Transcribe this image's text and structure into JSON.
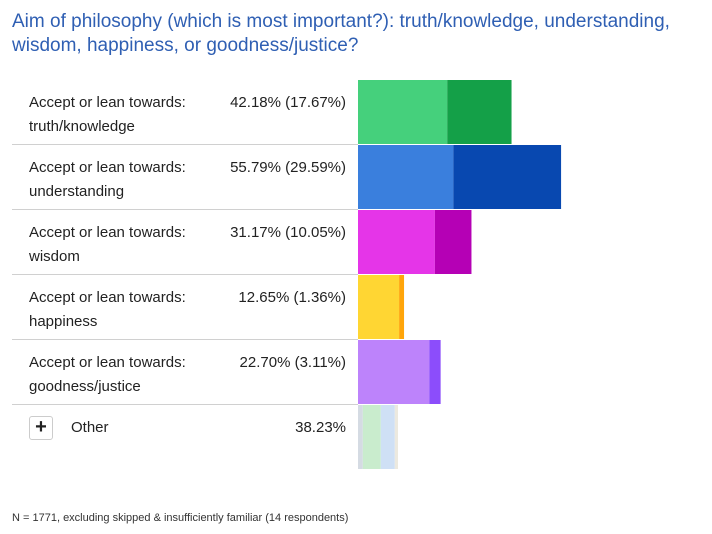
{
  "title": "Aim of philosophy (which is most important?): truth/knowledge, understanding, wisdom, happiness, or goodness/justice?",
  "chart_data": {
    "type": "bar",
    "orientation": "horizontal",
    "stacked": "overlay",
    "categories": [
      "Accept or lean towards: truth/knowledge",
      "Accept or lean towards: understanding",
      "Accept or lean towards: wisdom",
      "Accept or lean towards: happiness",
      "Accept or lean towards: goodness/justice"
    ],
    "series": [
      {
        "values": [
          42.18,
          55.79,
          31.17,
          12.65,
          22.7
        ]
      },
      {
        "values": [
          17.67,
          29.59,
          10.05,
          1.36,
          3.11
        ]
      }
    ],
    "value_labels": [
      "42.18% (17.67%)",
      "55.79% (29.59%)",
      "31.17% (10.05%)",
      "12.65% (1.36%)",
      "22.70% (3.11%)"
    ],
    "colors": [
      {
        "light": "#45d07c",
        "dark": "#14a048"
      },
      {
        "light": "#3a7fdd",
        "dark": "#0848b0"
      },
      {
        "light": "#e535e8",
        "dark": "#b500b5"
      },
      {
        "light": "#ffd633",
        "dark": "#ffa50a"
      },
      {
        "light": "#bd83fb",
        "dark": "#8c4dfb"
      }
    ],
    "other": {
      "label": "Other",
      "value": 38.23,
      "value_label": "38.23%",
      "colors": [
        "#c9eccd",
        "#cfe0f5",
        "#ece9df"
      ]
    }
  },
  "rows": [
    {
      "label": "Accept or lean towards: truth/knowledge",
      "value": "42.18% (17.67%)"
    },
    {
      "label": "Accept or lean towards: understanding",
      "value": "55.79% (29.59%)"
    },
    {
      "label": "Accept or lean towards: wisdom",
      "value": "31.17% (10.05%)"
    },
    {
      "label": "Accept or lean towards: happiness",
      "value": "12.65% (1.36%)"
    },
    {
      "label": "Accept or lean towards: goodness/justice",
      "value": "22.70% (3.11%)"
    }
  ],
  "other": {
    "plus": "+",
    "label": "Other",
    "value": "38.23%"
  },
  "footnote": "N = 1771, excluding skipped & insufficiently familiar (14 respondents)"
}
